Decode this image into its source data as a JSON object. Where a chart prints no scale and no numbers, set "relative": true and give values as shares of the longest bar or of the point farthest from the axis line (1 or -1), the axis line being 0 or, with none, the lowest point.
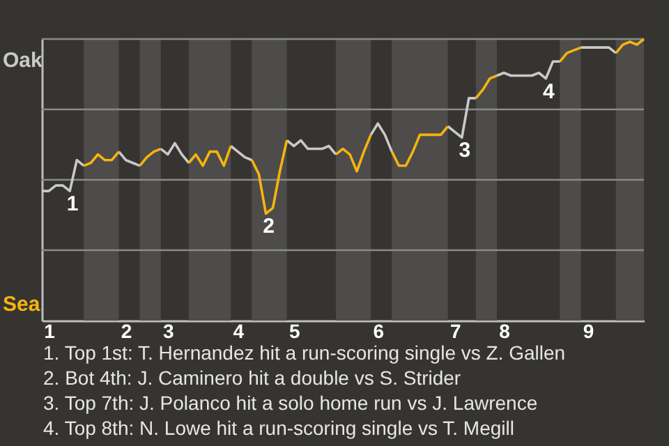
{
  "chart_data": {
    "type": "line",
    "relative": true,
    "categories": [
      null,
      "1",
      null,
      null,
      null,
      null,
      null,
      null,
      null,
      null,
      null,
      null,
      "2",
      null,
      null,
      null,
      null,
      null,
      "3",
      null,
      null,
      null,
      null,
      null,
      null,
      null,
      null,
      null,
      "4",
      null,
      null,
      null,
      null,
      null,
      null,
      null,
      "5",
      null,
      null,
      null,
      null,
      null,
      null,
      null,
      null,
      null,
      null,
      null,
      "6",
      null,
      null,
      null,
      null,
      null,
      null,
      null,
      null,
      null,
      null,
      "7",
      null,
      null,
      null,
      null,
      null,
      null,
      "8",
      null,
      null,
      null,
      null,
      null,
      null,
      null,
      null,
      null,
      null,
      null,
      "9",
      null,
      null,
      null,
      null,
      null,
      null,
      null,
      null
    ],
    "series": [
      {
        "color": "#c9c9c9",
        "values": [
          0.46,
          0.46,
          0.48,
          0.48,
          0.46,
          0.57,
          0.55,
          null,
          null,
          null,
          null,
          0.6,
          0.57,
          0.56,
          0.55,
          null,
          null,
          0.61,
          0.59,
          0.63,
          0.59,
          0.56,
          null,
          null,
          null,
          null,
          null,
          0.62,
          0.6,
          0.58,
          0.57,
          null,
          null,
          null,
          null,
          0.64,
          0.62,
          0.64,
          0.61,
          0.61,
          0.61,
          0.62,
          0.59,
          null,
          null,
          null,
          null,
          0.66,
          0.7,
          0.66,
          0.6,
          null,
          null,
          null,
          null,
          null,
          null,
          null,
          0.69,
          0.67,
          0.65,
          0.79,
          0.79,
          null,
          null,
          0.87,
          0.88,
          0.87,
          0.87,
          0.87,
          0.87,
          0.88,
          0.86,
          0.92,
          0.92,
          null,
          null,
          0.97,
          0.97,
          0.97,
          0.97,
          0.97,
          0.95,
          null,
          null,
          null,
          null
        ]
      },
      {
        "color": "#f6b40e",
        "values": [
          null,
          null,
          null,
          null,
          null,
          null,
          0.55,
          0.56,
          0.59,
          0.57,
          0.57,
          0.6,
          null,
          null,
          0.55,
          0.58,
          0.6,
          0.61,
          null,
          null,
          null,
          0.56,
          0.59,
          0.55,
          0.6,
          0.6,
          0.55,
          0.62,
          null,
          null,
          0.57,
          0.52,
          0.38,
          0.4,
          0.53,
          0.64,
          null,
          null,
          null,
          null,
          null,
          null,
          0.59,
          0.61,
          0.59,
          0.53,
          0.6,
          0.66,
          null,
          null,
          0.6,
          0.55,
          0.55,
          0.6,
          0.66,
          0.66,
          0.66,
          0.66,
          0.69,
          null,
          null,
          null,
          0.79,
          0.82,
          0.86,
          0.87,
          null,
          null,
          null,
          null,
          null,
          null,
          null,
          null,
          0.92,
          0.95,
          0.96,
          0.97,
          null,
          null,
          null,
          null,
          0.95,
          0.98,
          0.99,
          0.98,
          1.0
        ]
      }
    ],
    "ref_lines": [
      {
        "axis": "y",
        "value": 0.25,
        "color": "#8a8a8a"
      },
      {
        "axis": "y",
        "value": 0.5,
        "color": "#8a8a8a"
      },
      {
        "axis": "y",
        "value": 0.75,
        "color": "#8a8a8a"
      },
      {
        "axis": "y",
        "value": 1,
        "color": "#8a8a8a"
      }
    ],
    "annotations": [
      "Oak",
      "Sea",
      {
        "text": "1",
        "y": 0.46
      },
      {
        "text": "2",
        "y": 0.38
      },
      {
        "text": "3",
        "y": 0.65
      },
      {
        "text": "4",
        "y": 0.86
      },
      "1. Top 1st: T. Hernandez hit a run-scoring single vs Z. Gallen",
      "2. Bot 4th: J. Caminero hit a double vs S. Strider",
      "3. Top 7th: J. Polanco hit a solo home run vs J. Lawrence",
      "4. Top 8th: N. Lowe hit a run-scoring single vs T. Megill"
    ],
    "marker": "none",
    "line_style": "solid"
  }
}
